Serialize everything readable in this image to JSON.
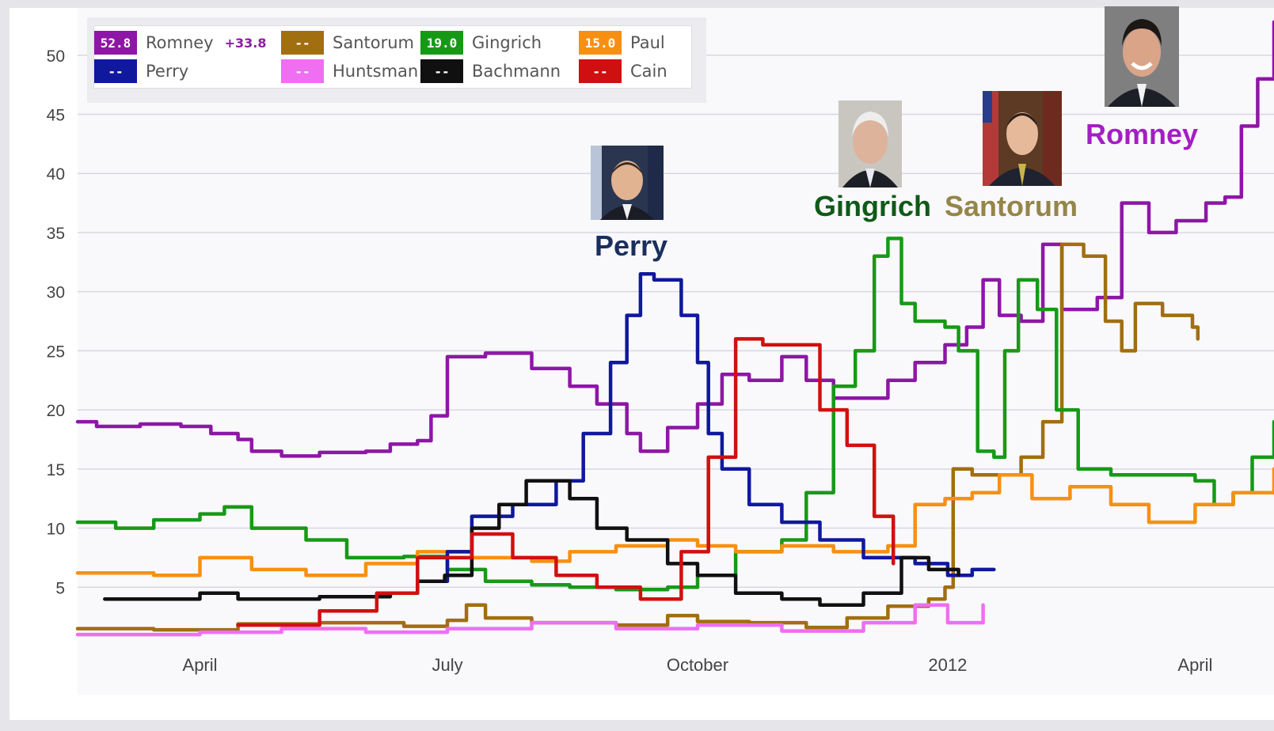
{
  "chart_data": {
    "type": "line",
    "title": "",
    "xlabel": "",
    "ylabel": "",
    "ylim": [
      0,
      54
    ],
    "yticks": [
      5,
      10,
      15,
      20,
      25,
      30,
      35,
      40,
      45,
      50
    ],
    "xlim": [
      "2011-02-15",
      "2012-04-30"
    ],
    "xticks": [
      {
        "date": "2011-04-01",
        "label": "April"
      },
      {
        "date": "2011-07-01",
        "label": "July"
      },
      {
        "date": "2011-10-01",
        "label": "October"
      },
      {
        "date": "2012-01-01",
        "label": "2012"
      },
      {
        "date": "2012-04-01",
        "label": "April"
      }
    ],
    "grid": true,
    "legend_position": "top-left",
    "series": [
      {
        "name": "Romney",
        "color": "#8e16a6",
        "current": "52.8",
        "delta": "+33.8",
        "points": [
          [
            "2011-02-15",
            19
          ],
          [
            "2011-02-22",
            18.6
          ],
          [
            "2011-03-10",
            18.8
          ],
          [
            "2011-03-25",
            18.6
          ],
          [
            "2011-04-05",
            18.0
          ],
          [
            "2011-04-15",
            17.5
          ],
          [
            "2011-04-20",
            16.5
          ],
          [
            "2011-05-01",
            16.1
          ],
          [
            "2011-05-15",
            16.4
          ],
          [
            "2011-06-01",
            16.5
          ],
          [
            "2011-06-10",
            17.1
          ],
          [
            "2011-06-20",
            17.4
          ],
          [
            "2011-06-25",
            19.5
          ],
          [
            "2011-07-01",
            24.5
          ],
          [
            "2011-07-15",
            24.8
          ],
          [
            "2011-08-01",
            23.5
          ],
          [
            "2011-08-15",
            22.0
          ],
          [
            "2011-08-25",
            20.5
          ],
          [
            "2011-09-05",
            18.0
          ],
          [
            "2011-09-10",
            16.5
          ],
          [
            "2011-09-20",
            18.5
          ],
          [
            "2011-10-01",
            20.5
          ],
          [
            "2011-10-10",
            23.0
          ],
          [
            "2011-10-20",
            22.5
          ],
          [
            "2011-11-01",
            24.5
          ],
          [
            "2011-11-10",
            22.5
          ],
          [
            "2011-11-20",
            21.0
          ],
          [
            "2011-12-01",
            21.0
          ],
          [
            "2011-12-10",
            22.5
          ],
          [
            "2011-12-20",
            24.0
          ],
          [
            "2011-12-31",
            25.5
          ],
          [
            "2012-01-08",
            27.0
          ],
          [
            "2012-01-14",
            31.0
          ],
          [
            "2012-01-20",
            28.0
          ],
          [
            "2012-01-28",
            27.5
          ],
          [
            "2012-02-05",
            34.0
          ],
          [
            "2012-02-12",
            28.5
          ],
          [
            "2012-02-25",
            29.5
          ],
          [
            "2012-03-05",
            37.5
          ],
          [
            "2012-03-15",
            35.0
          ],
          [
            "2012-03-25",
            36.0
          ],
          [
            "2012-04-05",
            37.5
          ],
          [
            "2012-04-12",
            38.0
          ],
          [
            "2012-04-18",
            44.0
          ],
          [
            "2012-04-24",
            48.0
          ],
          [
            "2012-04-30",
            52.8
          ]
        ]
      },
      {
        "name": "Santorum",
        "color": "#a16e10",
        "current": "--",
        "points": [
          [
            "2011-02-15",
            1.5
          ],
          [
            "2011-03-15",
            1.4
          ],
          [
            "2011-04-15",
            1.9
          ],
          [
            "2011-05-15",
            2.0
          ],
          [
            "2011-06-15",
            1.7
          ],
          [
            "2011-07-01",
            2.2
          ],
          [
            "2011-07-08",
            3.5
          ],
          [
            "2011-07-15",
            2.4
          ],
          [
            "2011-08-01",
            2.0
          ],
          [
            "2011-09-01",
            1.8
          ],
          [
            "2011-09-20",
            2.6
          ],
          [
            "2011-10-01",
            2.1
          ],
          [
            "2011-10-20",
            2.0
          ],
          [
            "2011-11-10",
            1.6
          ],
          [
            "2011-11-25",
            2.4
          ],
          [
            "2011-12-10",
            3.4
          ],
          [
            "2011-12-25",
            4.0
          ],
          [
            "2011-12-31",
            5.0
          ],
          [
            "2012-01-03",
            15.0
          ],
          [
            "2012-01-10",
            14.5
          ],
          [
            "2012-01-20",
            14.5
          ],
          [
            "2012-01-28",
            16.0
          ],
          [
            "2012-02-05",
            19.0
          ],
          [
            "2012-02-12",
            34.0
          ],
          [
            "2012-02-20",
            33.0
          ],
          [
            "2012-02-28",
            27.5
          ],
          [
            "2012-03-05",
            25.0
          ],
          [
            "2012-03-10",
            29.0
          ],
          [
            "2012-03-20",
            28.0
          ],
          [
            "2012-03-31",
            27.0
          ],
          [
            "2012-04-02",
            26.0
          ]
        ]
      },
      {
        "name": "Gingrich",
        "color": "#169a16",
        "current": "19.0",
        "points": [
          [
            "2011-02-15",
            10.5
          ],
          [
            "2011-03-01",
            10.0
          ],
          [
            "2011-03-15",
            10.7
          ],
          [
            "2011-04-01",
            11.2
          ],
          [
            "2011-04-10",
            11.8
          ],
          [
            "2011-04-20",
            10.0
          ],
          [
            "2011-05-10",
            9.0
          ],
          [
            "2011-05-25",
            7.5
          ],
          [
            "2011-06-15",
            7.6
          ],
          [
            "2011-07-01",
            6.5
          ],
          [
            "2011-07-15",
            5.5
          ],
          [
            "2011-08-01",
            5.2
          ],
          [
            "2011-08-15",
            5.0
          ],
          [
            "2011-09-01",
            4.8
          ],
          [
            "2011-09-20",
            5.0
          ],
          [
            "2011-10-01",
            6.0
          ],
          [
            "2011-10-15",
            8.0
          ],
          [
            "2011-11-01",
            9.0
          ],
          [
            "2011-11-10",
            13.0
          ],
          [
            "2011-11-20",
            22.0
          ],
          [
            "2011-11-28",
            25.0
          ],
          [
            "2011-12-05",
            33.0
          ],
          [
            "2011-12-10",
            34.5
          ],
          [
            "2011-12-15",
            29.0
          ],
          [
            "2011-12-20",
            27.5
          ],
          [
            "2011-12-31",
            27.0
          ],
          [
            "2012-01-05",
            25.0
          ],
          [
            "2012-01-12",
            16.5
          ],
          [
            "2012-01-18",
            16.0
          ],
          [
            "2012-01-22",
            25.0
          ],
          [
            "2012-01-27",
            31.0
          ],
          [
            "2012-02-03",
            28.5
          ],
          [
            "2012-02-10",
            20.0
          ],
          [
            "2012-02-18",
            15.0
          ],
          [
            "2012-03-01",
            14.5
          ],
          [
            "2012-03-15",
            14.5
          ],
          [
            "2012-04-01",
            14.0
          ],
          [
            "2012-04-08",
            12.0
          ],
          [
            "2012-04-15",
            13.0
          ],
          [
            "2012-04-22",
            16.0
          ],
          [
            "2012-04-30",
            19.0
          ]
        ]
      },
      {
        "name": "Paul",
        "color": "#f79012",
        "current": "15.0",
        "points": [
          [
            "2011-02-15",
            6.2
          ],
          [
            "2011-03-15",
            6.0
          ],
          [
            "2011-04-01",
            7.5
          ],
          [
            "2011-04-20",
            6.5
          ],
          [
            "2011-05-10",
            6.0
          ],
          [
            "2011-06-01",
            7.0
          ],
          [
            "2011-06-20",
            8.0
          ],
          [
            "2011-07-10",
            7.5
          ],
          [
            "2011-08-01",
            7.2
          ],
          [
            "2011-08-15",
            8.0
          ],
          [
            "2011-09-01",
            8.5
          ],
          [
            "2011-09-20",
            9.0
          ],
          [
            "2011-10-01",
            8.5
          ],
          [
            "2011-10-15",
            8.0
          ],
          [
            "2011-11-01",
            8.5
          ],
          [
            "2011-11-20",
            8.0
          ],
          [
            "2011-12-10",
            8.5
          ],
          [
            "2011-12-20",
            12.0
          ],
          [
            "2011-12-31",
            12.5
          ],
          [
            "2012-01-10",
            13.0
          ],
          [
            "2012-01-20",
            14.5
          ],
          [
            "2012-02-01",
            12.5
          ],
          [
            "2012-02-15",
            13.5
          ],
          [
            "2012-03-01",
            12.0
          ],
          [
            "2012-03-15",
            10.5
          ],
          [
            "2012-04-01",
            12.0
          ],
          [
            "2012-04-15",
            13.0
          ],
          [
            "2012-04-30",
            15.0
          ]
        ]
      },
      {
        "name": "Perry",
        "color": "#10189e",
        "current": "--",
        "points": [
          [
            "2011-06-20",
            5.5
          ],
          [
            "2011-07-01",
            8.0
          ],
          [
            "2011-07-10",
            11.0
          ],
          [
            "2011-07-25",
            12.0
          ],
          [
            "2011-08-10",
            14.0
          ],
          [
            "2011-08-20",
            18.0
          ],
          [
            "2011-08-30",
            24.0
          ],
          [
            "2011-09-05",
            28.0
          ],
          [
            "2011-09-10",
            31.5
          ],
          [
            "2011-09-15",
            31.0
          ],
          [
            "2011-09-25",
            28.0
          ],
          [
            "2011-10-01",
            24.0
          ],
          [
            "2011-10-05",
            18.0
          ],
          [
            "2011-10-10",
            15.0
          ],
          [
            "2011-10-20",
            12.0
          ],
          [
            "2011-11-01",
            10.5
          ],
          [
            "2011-11-15",
            9.0
          ],
          [
            "2011-12-01",
            7.5
          ],
          [
            "2011-12-20",
            7.0
          ],
          [
            "2012-01-01",
            6.0
          ],
          [
            "2012-01-10",
            6.5
          ],
          [
            "2012-01-18",
            6.5
          ]
        ]
      },
      {
        "name": "Huntsman",
        "color": "#ef6ef2",
        "current": "--",
        "points": [
          [
            "2011-02-15",
            1.0
          ],
          [
            "2011-04-01",
            1.2
          ],
          [
            "2011-05-01",
            1.5
          ],
          [
            "2011-06-01",
            1.2
          ],
          [
            "2011-07-01",
            1.5
          ],
          [
            "2011-08-01",
            2.0
          ],
          [
            "2011-09-01",
            1.5
          ],
          [
            "2011-10-01",
            1.8
          ],
          [
            "2011-11-01",
            1.3
          ],
          [
            "2011-12-01",
            2.0
          ],
          [
            "2011-12-20",
            3.5
          ],
          [
            "2012-01-01",
            2.0
          ],
          [
            "2012-01-14",
            3.5
          ]
        ]
      },
      {
        "name": "Bachmann",
        "color": "#101010",
        "current": "--",
        "points": [
          [
            "2011-02-25",
            4.0
          ],
          [
            "2011-04-01",
            4.5
          ],
          [
            "2011-04-15",
            4.0
          ],
          [
            "2011-05-15",
            4.2
          ],
          [
            "2011-06-10",
            4.5
          ],
          [
            "2011-06-20",
            5.5
          ],
          [
            "2011-06-30",
            6.0
          ],
          [
            "2011-07-10",
            10.0
          ],
          [
            "2011-07-20",
            12.0
          ],
          [
            "2011-07-30",
            14.0
          ],
          [
            "2011-08-15",
            12.5
          ],
          [
            "2011-08-25",
            10.0
          ],
          [
            "2011-09-05",
            9.0
          ],
          [
            "2011-09-20",
            7.0
          ],
          [
            "2011-10-01",
            6.0
          ],
          [
            "2011-10-15",
            4.5
          ],
          [
            "2011-11-01",
            4.0
          ],
          [
            "2011-11-15",
            3.5
          ],
          [
            "2011-12-01",
            4.5
          ],
          [
            "2011-12-15",
            7.5
          ],
          [
            "2011-12-25",
            6.5
          ],
          [
            "2012-01-05",
            6.0
          ]
        ]
      },
      {
        "name": "Cain",
        "color": "#d01010",
        "current": "--",
        "points": [
          [
            "2011-04-15",
            1.8
          ],
          [
            "2011-05-15",
            3.0
          ],
          [
            "2011-06-05",
            4.5
          ],
          [
            "2011-06-20",
            7.5
          ],
          [
            "2011-07-10",
            9.5
          ],
          [
            "2011-07-25",
            7.5
          ],
          [
            "2011-08-10",
            6.0
          ],
          [
            "2011-08-25",
            5.0
          ],
          [
            "2011-09-10",
            4.0
          ],
          [
            "2011-09-25",
            8.0
          ],
          [
            "2011-10-05",
            16.0
          ],
          [
            "2011-10-15",
            26.0
          ],
          [
            "2011-10-25",
            25.5
          ],
          [
            "2011-11-05",
            25.5
          ],
          [
            "2011-11-15",
            20.0
          ],
          [
            "2011-11-25",
            17.0
          ],
          [
            "2011-12-05",
            11.0
          ],
          [
            "2011-12-12",
            7.0
          ]
        ]
      }
    ],
    "annotations": [
      {
        "name": "Perry",
        "color": "#1b2f5e",
        "photo": "perry-photo"
      },
      {
        "name": "Gingrich",
        "color": "#0f5a17",
        "photo": "gingrich-photo"
      },
      {
        "name": "Santorum",
        "color": "#958548",
        "photo": "santorum-photo"
      },
      {
        "name": "Romney",
        "color": "#a41ec4",
        "photo": "romney-photo"
      }
    ]
  }
}
